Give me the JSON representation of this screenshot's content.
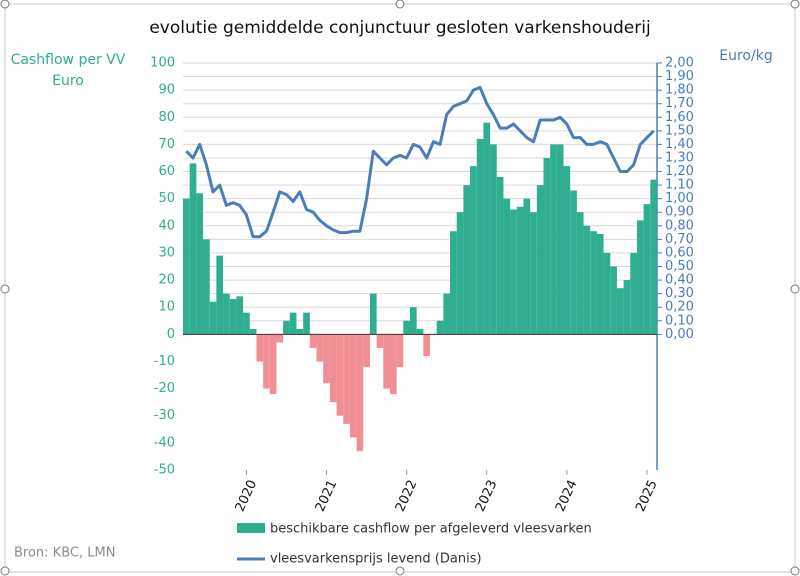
{
  "chart_data": {
    "type": "bar_line",
    "title": "evolutie gemiddelde conjunctuur gesloten varkenshouderij",
    "ylabel": [
      "Cashflow per VV",
      "Euro"
    ],
    "y2label": "Euro/kg",
    "source": "Bron: KBC, LMN",
    "categories": [
      null,
      null,
      null,
      null,
      null,
      null,
      null,
      null,
      null,
      "2020",
      null,
      null,
      null,
      null,
      null,
      null,
      null,
      null,
      null,
      null,
      null,
      "2021",
      null,
      null,
      null,
      null,
      null,
      null,
      null,
      null,
      null,
      null,
      null,
      "2022",
      null,
      null,
      null,
      null,
      null,
      null,
      null,
      null,
      null,
      null,
      null,
      "2023",
      null,
      null,
      null,
      null,
      null,
      null,
      null,
      null,
      null,
      null,
      null,
      "2024",
      null,
      null,
      null,
      null,
      null,
      null,
      null,
      null,
      null,
      null,
      null,
      "2025",
      null
    ],
    "series": [
      {
        "name": "beschikbare cashflow per afgeleverd vleesvarken",
        "color": "#2fae91",
        "negative_color": "#f28f95",
        "values": [
          50,
          63,
          52,
          35,
          12,
          29,
          15,
          13,
          14,
          8,
          2,
          -10,
          -20,
          -22,
          -3,
          5,
          8,
          2,
          8,
          -5,
          -10,
          -18,
          -25,
          -30,
          -33,
          -38,
          -43,
          -12,
          15,
          -5,
          -20,
          -22,
          -12,
          5,
          10,
          2,
          -8,
          0,
          5,
          15,
          38,
          45,
          55,
          62,
          72,
          78,
          70,
          58,
          50,
          46,
          47,
          50,
          45,
          55,
          65,
          70,
          70,
          62,
          53,
          45,
          40,
          38,
          37,
          30,
          25,
          17,
          20,
          30,
          42,
          48,
          57
        ]
      },
      {
        "name": "vleesvarkensprijs levend (Danis)",
        "color": "#4a7ebb",
        "axis": "y2",
        "values": [
          1.35,
          1.3,
          1.4,
          1.25,
          1.05,
          1.1,
          0.95,
          0.97,
          0.95,
          0.88,
          0.72,
          0.72,
          0.76,
          0.9,
          1.05,
          1.03,
          0.98,
          1.05,
          0.92,
          0.9,
          0.84,
          0.8,
          0.77,
          0.75,
          0.75,
          0.76,
          0.76,
          1.0,
          1.35,
          1.3,
          1.25,
          1.3,
          1.32,
          1.3,
          1.4,
          1.38,
          1.3,
          1.42,
          1.4,
          1.62,
          1.68,
          1.7,
          1.72,
          1.8,
          1.82,
          1.7,
          1.62,
          1.52,
          1.52,
          1.55,
          1.5,
          1.45,
          1.42,
          1.58,
          1.58,
          1.58,
          1.6,
          1.55,
          1.45,
          1.45,
          1.4,
          1.4,
          1.42,
          1.4,
          1.3,
          1.2,
          1.2,
          1.25,
          1.4,
          1.45,
          1.5
        ]
      }
    ],
    "ylim": [
      -50,
      100
    ],
    "yticks": [
      -50,
      -40,
      -30,
      -20,
      -10,
      0,
      10,
      20,
      30,
      40,
      50,
      60,
      70,
      80,
      90,
      100
    ],
    "y2lim": [
      -1.0,
      2.0
    ],
    "y2ticks": [
      {
        "value": 0,
        "label": "0,00"
      },
      {
        "value": 0.1,
        "label": "0,10"
      },
      {
        "value": 0.2,
        "label": "0,20"
      },
      {
        "value": 0.3,
        "label": "0,30"
      },
      {
        "value": 0.4,
        "label": "0,40"
      },
      {
        "value": 0.5,
        "label": "0,50"
      },
      {
        "value": 0.6,
        "label": "0,60"
      },
      {
        "value": 0.7,
        "label": "0,70"
      },
      {
        "value": 0.8,
        "label": "0,80"
      },
      {
        "value": 0.9,
        "label": "0,90"
      },
      {
        "value": 1.0,
        "label": "1,00"
      },
      {
        "value": 1.1,
        "label": "1,10"
      },
      {
        "value": 1.2,
        "label": "1,20"
      },
      {
        "value": 1.3,
        "label": "1,30"
      },
      {
        "value": 1.4,
        "label": "1,40"
      },
      {
        "value": 1.5,
        "label": "1,50"
      },
      {
        "value": 1.6,
        "label": "1,60"
      },
      {
        "value": 1.7,
        "label": "1,70"
      },
      {
        "value": 1.8,
        "label": "1,80"
      },
      {
        "value": 1.9,
        "label": "1,90"
      },
      {
        "value": 2.0,
        "label": "2,00"
      }
    ],
    "grid": true
  }
}
